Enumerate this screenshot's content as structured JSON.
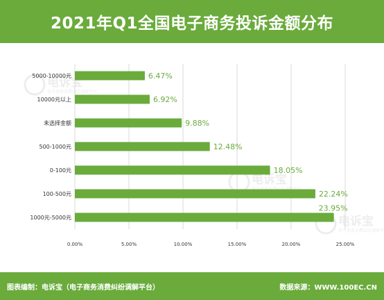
{
  "title": "2021年Q1全国电子商务投诉金额分布",
  "footer": {
    "left": "图表编制：电诉宝（电子商务消费纠纷调解平台）",
    "right": "数据来源：WWW.100EC.CN"
  },
  "watermark": {
    "brand": "电诉宝",
    "sub": "电子商务消费纠纷调解平台"
  },
  "colors": {
    "bar": "#6aab3c",
    "label": "#6aab3c",
    "grid": "#d9d9d9",
    "header": "#6aab3c"
  },
  "chart_data": {
    "type": "bar",
    "orientation": "horizontal",
    "categories": [
      "5000-10000元",
      "10000元以上",
      "未选择金额",
      "500-1000元",
      "0-100元",
      "100-500元",
      "1000元-5000元"
    ],
    "values": [
      6.47,
      6.92,
      9.88,
      12.48,
      18.05,
      22.24,
      23.95
    ],
    "value_labels": [
      "6.47%",
      "6.92%",
      "9.88%",
      "12.48%",
      "18.05%",
      "22.24%",
      "23.95%"
    ],
    "x_ticks": [
      0,
      5,
      10,
      15,
      20,
      25
    ],
    "x_tick_labels": [
      "0.00%",
      "5.00%",
      "10.00%",
      "15.00%",
      "20.00%",
      "25.00%"
    ],
    "xlim": [
      0,
      25
    ],
    "grid": true,
    "legend": "none"
  }
}
